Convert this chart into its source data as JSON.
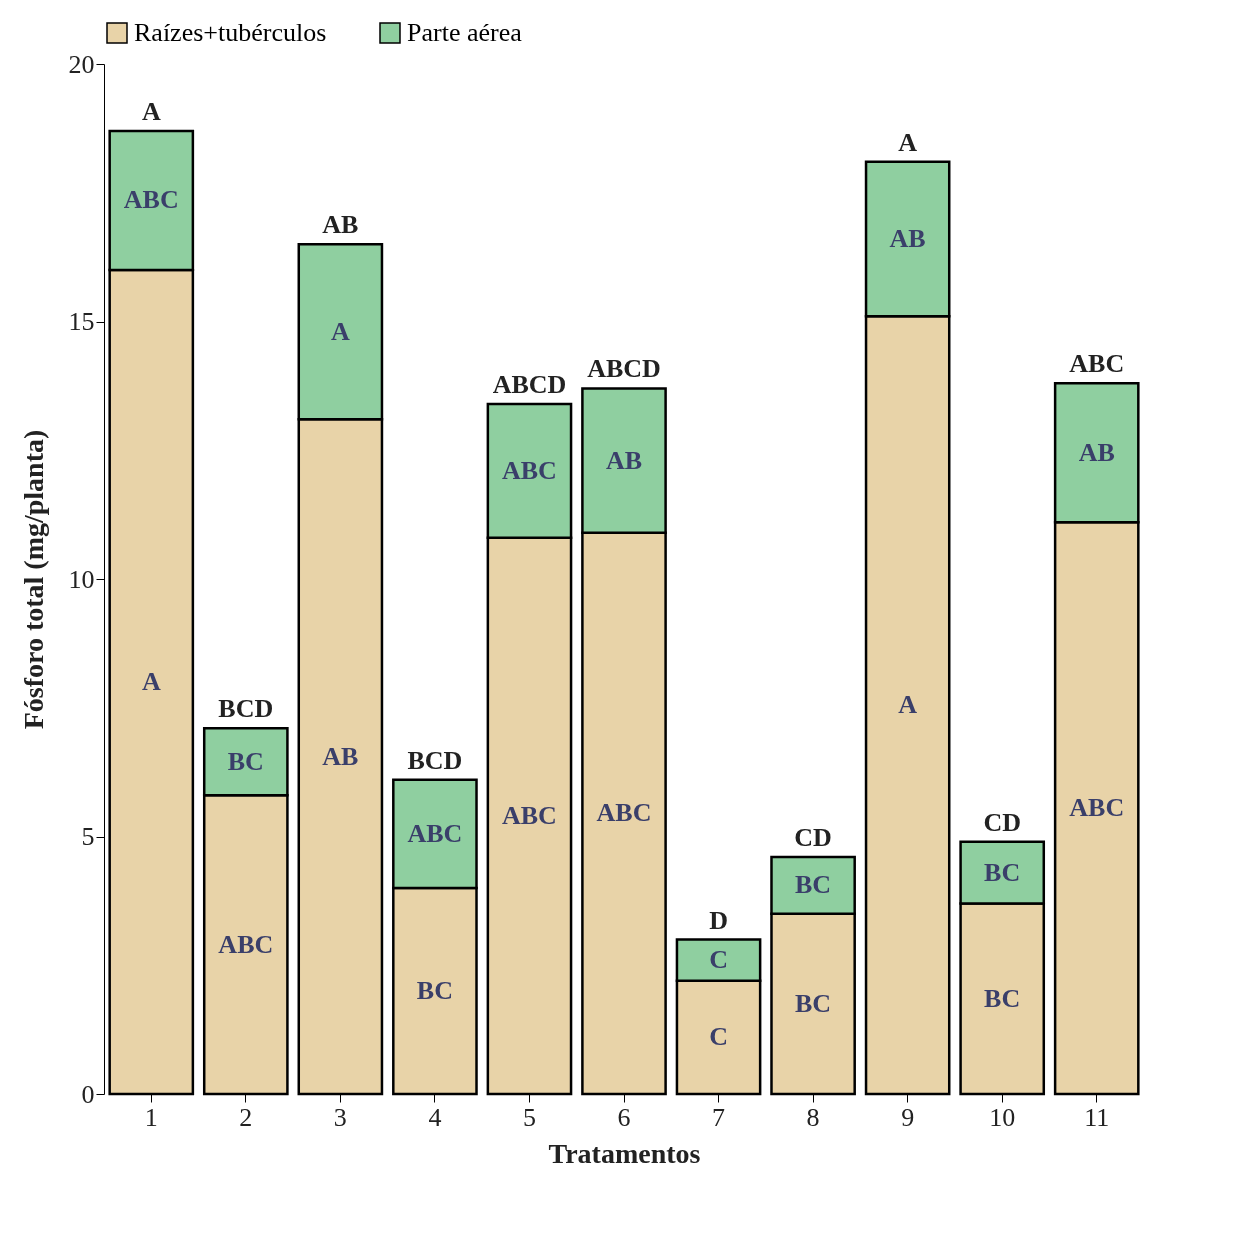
{
  "chart_data": {
    "type": "bar",
    "stacked": true,
    "xlabel": "Tratamentos",
    "ylabel": "Fósforo total (mg/planta)",
    "categories": [
      "1",
      "2",
      "3",
      "4",
      "5",
      "6",
      "7",
      "8",
      "9",
      "10",
      "11"
    ],
    "ylim": [
      0,
      20
    ],
    "yticks": [
      0,
      5,
      10,
      15,
      20
    ],
    "grid": false,
    "legend": "top",
    "series": [
      {
        "name": "Raízes+tubérculos",
        "color": "#e8d3a8",
        "values": [
          16.0,
          5.8,
          13.1,
          4.0,
          10.8,
          10.9,
          2.2,
          3.5,
          15.1,
          3.7,
          11.1
        ],
        "value_labels": [
          "A",
          "ABC",
          "AB",
          "BC",
          "ABC",
          "ABC",
          "C",
          "BC",
          "A",
          "BC",
          "ABC"
        ]
      },
      {
        "name": "Parte aérea",
        "color": "#8fcfa0",
        "values": [
          2.7,
          1.3,
          3.4,
          2.1,
          2.6,
          2.8,
          0.8,
          1.1,
          3.0,
          1.2,
          2.7
        ],
        "value_labels": [
          "ABC",
          "BC",
          "A",
          "ABC",
          "ABC",
          "AB",
          "C",
          "BC",
          "AB",
          "BC",
          "AB"
        ]
      }
    ],
    "totals": [
      "A",
      "BCD",
      "AB",
      "BCD",
      "ABCD",
      "ABCD",
      "D",
      "CD",
      "A",
      "CD",
      "ABC"
    ]
  }
}
